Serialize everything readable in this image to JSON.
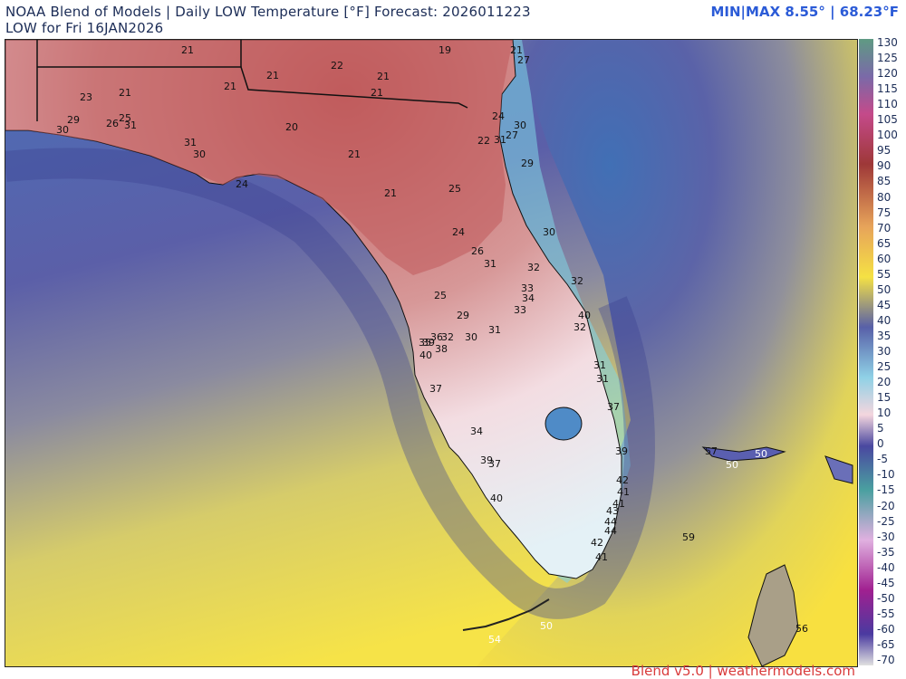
{
  "header": {
    "title_line1": "NOAA Blend of Models | Daily LOW Temperature [°F] Forecast: 2026011223",
    "title_line2": "LOW for Fri 16JAN2026",
    "minmax": "MIN|MAX 8.55°  | 68.23°F"
  },
  "footer": {
    "credit": "Blend v5.0 | weathermodels.com"
  },
  "colors": {
    "title": "#1c2d57",
    "minmax": "#2b5bd7",
    "credit": "#d93a3a",
    "cold_land": "#c96d6d",
    "cool_land": "#f4dbe0",
    "mild_land": "#dfeef4",
    "near_shore_water": "#3a7cc4",
    "deep_water": "#4a4d9c",
    "far_water": "#f2e24a"
  },
  "colorbar": {
    "labels": [
      "130",
      "125",
      "120",
      "115",
      "110",
      "105",
      "100",
      "95",
      "90",
      "85",
      "80",
      "75",
      "70",
      "65",
      "60",
      "55",
      "50",
      "45",
      "40",
      "35",
      "30",
      "25",
      "20",
      "15",
      "10",
      "5",
      "0",
      "-5",
      "-10",
      "-15",
      "-20",
      "-25",
      "-30",
      "-35",
      "-40",
      "-45",
      "-50",
      "-55",
      "-60",
      "-65",
      "-70"
    ]
  },
  "map": {
    "labels": [
      {
        "t": "21",
        "c": "dark"
      },
      {
        "t": "19",
        "c": "dark"
      },
      {
        "t": "21",
        "c": "dark"
      },
      {
        "t": "27",
        "c": "dark"
      },
      {
        "t": "22",
        "c": "dark"
      },
      {
        "t": "21",
        "c": "dark"
      },
      {
        "t": "21",
        "c": "dark"
      },
      {
        "t": "21",
        "c": "dark"
      },
      {
        "t": "21",
        "c": "dark"
      },
      {
        "t": "23",
        "c": "dark"
      },
      {
        "t": "21",
        "c": "dark"
      },
      {
        "t": "25",
        "c": "dark"
      },
      {
        "t": "29",
        "c": "dark"
      },
      {
        "t": "26",
        "c": "dark"
      },
      {
        "t": "31",
        "c": "dark"
      },
      {
        "t": "30",
        "c": "dark"
      },
      {
        "t": "20",
        "c": "dark"
      },
      {
        "t": "24",
        "c": "dark"
      },
      {
        "t": "30",
        "c": "dark"
      },
      {
        "t": "27",
        "c": "dark"
      },
      {
        "t": "22",
        "c": "dark"
      },
      {
        "t": "31",
        "c": "dark"
      },
      {
        "t": "31",
        "c": "dark"
      },
      {
        "t": "30",
        "c": "dark"
      },
      {
        "t": "21",
        "c": "dark"
      },
      {
        "t": "29",
        "c": "dark"
      },
      {
        "t": "24",
        "c": "dark"
      },
      {
        "t": "21",
        "c": "dark"
      },
      {
        "t": "25",
        "c": "dark"
      },
      {
        "t": "24",
        "c": "dark"
      },
      {
        "t": "30",
        "c": "dark"
      },
      {
        "t": "26",
        "c": "dark"
      },
      {
        "t": "31",
        "c": "dark"
      },
      {
        "t": "32",
        "c": "dark"
      },
      {
        "t": "32",
        "c": "dark"
      },
      {
        "t": "33",
        "c": "dark"
      },
      {
        "t": "34",
        "c": "dark"
      },
      {
        "t": "25",
        "c": "dark"
      },
      {
        "t": "33",
        "c": "dark"
      },
      {
        "t": "29",
        "c": "dark"
      },
      {
        "t": "40",
        "c": "dark"
      },
      {
        "t": "32",
        "c": "dark"
      },
      {
        "t": "31",
        "c": "dark"
      },
      {
        "t": "30",
        "c": "dark"
      },
      {
        "t": "32",
        "c": "dark"
      },
      {
        "t": "39",
        "c": "dark"
      },
      {
        "t": "36",
        "c": "dark"
      },
      {
        "t": "35",
        "c": "dark"
      },
      {
        "t": "38",
        "c": "dark"
      },
      {
        "t": "40",
        "c": "dark"
      },
      {
        "t": "31",
        "c": "dark"
      },
      {
        "t": "31",
        "c": "dark"
      },
      {
        "t": "37",
        "c": "dark"
      },
      {
        "t": "37",
        "c": "dark"
      },
      {
        "t": "34",
        "c": "dark"
      },
      {
        "t": "39",
        "c": "dark"
      },
      {
        "t": "57",
        "c": "dark"
      },
      {
        "t": "50",
        "c": "light"
      },
      {
        "t": "50",
        "c": "light"
      },
      {
        "t": "39",
        "c": "dark"
      },
      {
        "t": "37",
        "c": "dark"
      },
      {
        "t": "40",
        "c": "dark"
      },
      {
        "t": "42",
        "c": "dark"
      },
      {
        "t": "41",
        "c": "dark"
      },
      {
        "t": "41",
        "c": "dark"
      },
      {
        "t": "43",
        "c": "dark"
      },
      {
        "t": "44",
        "c": "dark"
      },
      {
        "t": "44",
        "c": "dark"
      },
      {
        "t": "59",
        "c": "dark"
      },
      {
        "t": "42",
        "c": "dark"
      },
      {
        "t": "41",
        "c": "dark"
      },
      {
        "t": "50",
        "c": "light"
      },
      {
        "t": "54",
        "c": "light"
      },
      {
        "t": "56",
        "c": "dark"
      }
    ]
  }
}
